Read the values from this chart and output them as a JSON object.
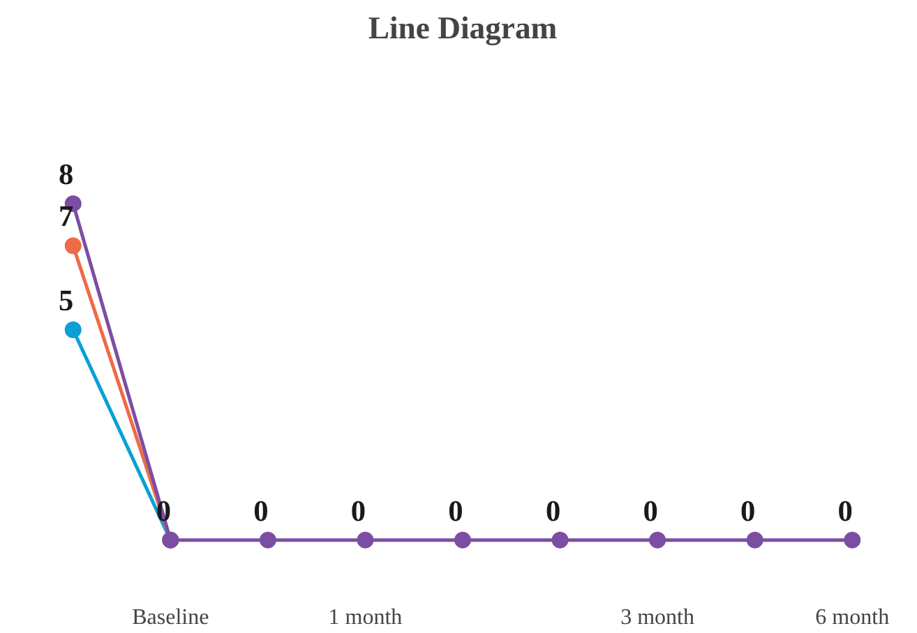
{
  "chart_data": {
    "type": "line",
    "title": "Line Diagram",
    "categories": [
      null,
      "Baseline",
      null,
      "1 month",
      null,
      null,
      "3 month",
      null,
      "6 month"
    ],
    "series": [
      {
        "color": "#0aa0d6",
        "values": [
          5,
          0,
          null,
          null,
          null,
          null,
          null,
          null,
          null
        ],
        "value_labels": [
          "5",
          null,
          null,
          null,
          null,
          null,
          null,
          null,
          null
        ]
      },
      {
        "color": "#ef6a47",
        "values": [
          7,
          0,
          null,
          null,
          null,
          null,
          null,
          null,
          null
        ],
        "value_labels": [
          "7",
          null,
          null,
          null,
          null,
          null,
          null,
          null,
          null
        ]
      },
      {
        "color": "#7b4ea3",
        "values": [
          8,
          0,
          0,
          0,
          0,
          0,
          0,
          0,
          0
        ],
        "value_labels": [
          "8",
          "0",
          "0",
          "0",
          "0",
          "0",
          "0",
          "0",
          "0"
        ]
      }
    ],
    "marker": "circle",
    "grid": false
  }
}
